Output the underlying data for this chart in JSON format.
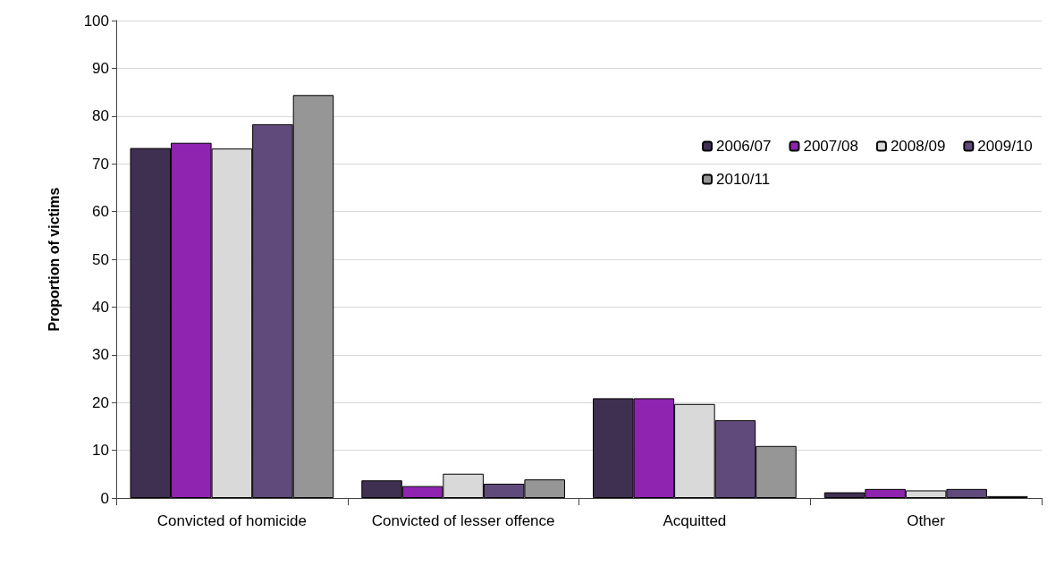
{
  "chart_data": {
    "type": "bar",
    "ylabel": "Proportion of victims",
    "categories": [
      "Convicted of homicide",
      "Convicted of lesser offence",
      "Acquitted",
      "Other"
    ],
    "series": [
      {
        "name": "2006/07",
        "color": "#3f2f50",
        "values": [
          73.3,
          3.7,
          20.9,
          1.2
        ]
      },
      {
        "name": "2007/08",
        "color": "#8e24b0",
        "values": [
          74.4,
          2.5,
          20.9,
          1.9
        ]
      },
      {
        "name": "2008/09",
        "color": "#d9d9d9",
        "values": [
          73.2,
          5.1,
          19.7,
          1.6
        ]
      },
      {
        "name": "2009/10",
        "color": "#604a7b",
        "values": [
          78.3,
          3.0,
          16.3,
          1.9
        ]
      },
      {
        "name": "2010/11",
        "color": "#969696",
        "values": [
          84.4,
          3.9,
          10.9,
          0.4
        ]
      }
    ],
    "ylim": [
      0,
      100
    ],
    "yticks": [
      0,
      10,
      20,
      30,
      40,
      50,
      60,
      70,
      80,
      90,
      100
    ],
    "grid": "y",
    "legend": "top right"
  }
}
